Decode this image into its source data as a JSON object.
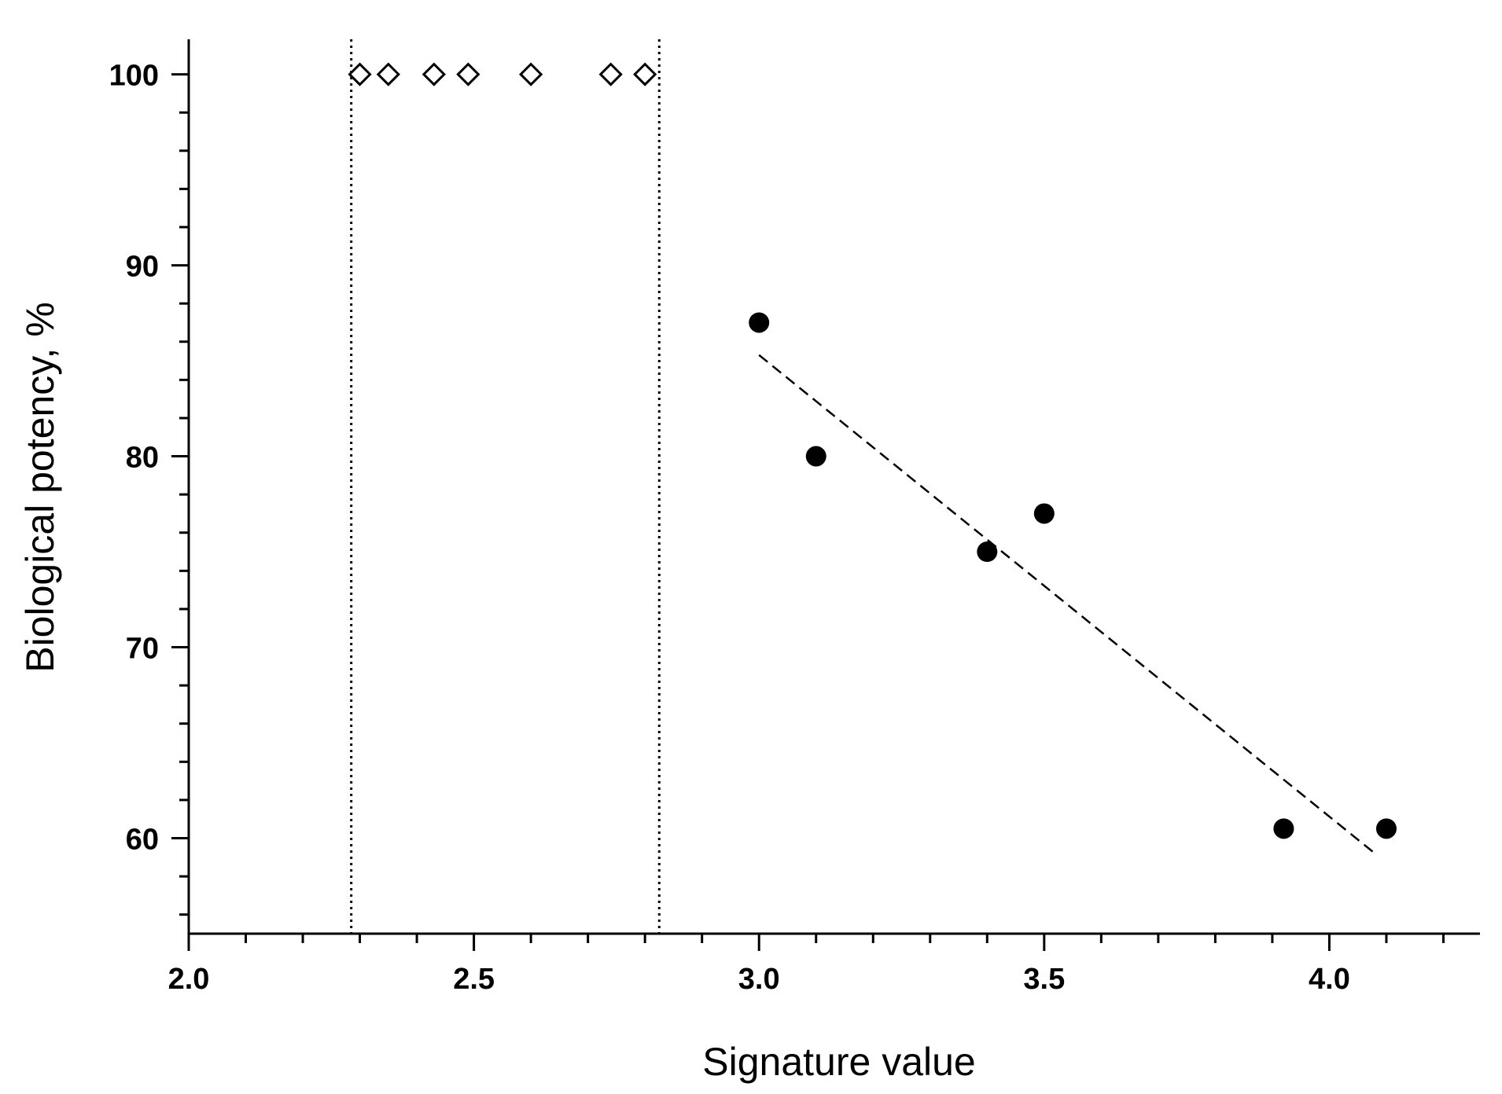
{
  "chart_data": {
    "type": "scatter",
    "xlabel": "Signature value",
    "ylabel": "Biological potency, %",
    "xlim": [
      2.0,
      4.3
    ],
    "ylim": [
      55,
      102
    ],
    "x_ticks": [
      2.0,
      2.5,
      3.0,
      3.5,
      4.0
    ],
    "x_tick_labels": [
      "2.0",
      "2.5",
      "3.0",
      "3.5",
      "4.0"
    ],
    "y_ticks": [
      60,
      70,
      80,
      90,
      100
    ],
    "y_tick_labels": [
      "60",
      "70",
      "80",
      "90",
      "100"
    ],
    "grid": false,
    "legend": "none",
    "series": [
      {
        "marker": "open-diamond",
        "x": [
          2.3,
          2.35,
          2.43,
          2.49,
          2.6,
          2.74,
          2.8
        ],
        "y": [
          100,
          100,
          100,
          100,
          100,
          100,
          100
        ]
      },
      {
        "marker": "filled-circle",
        "x": [
          3.0,
          3.1,
          3.4,
          3.5,
          3.92,
          4.1
        ],
        "y": [
          87,
          80,
          75,
          77,
          60.5,
          60.5
        ]
      }
    ],
    "trend_line": {
      "style": "dashed",
      "x": [
        3.0,
        4.08
      ],
      "y": [
        85.3,
        59.2
      ]
    },
    "reference_lines": {
      "style": "dotted",
      "x": [
        2.285,
        2.825
      ]
    }
  }
}
